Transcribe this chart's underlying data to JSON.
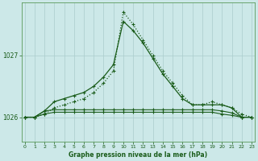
{
  "title": "Graphe pression niveau de la mer (hPa)",
  "background_color": "#cce8e8",
  "grid_color": "#aacccc",
  "line_color": "#1a5c1a",
  "text_color": "#1a5c1a",
  "x_ticks": [
    0,
    1,
    2,
    3,
    4,
    5,
    6,
    7,
    8,
    9,
    10,
    11,
    12,
    13,
    14,
    15,
    16,
    17,
    18,
    19,
    20,
    21,
    22,
    23
  ],
  "y_ticks": [
    1026,
    1027
  ],
  "ylim": [
    1025.6,
    1027.85
  ],
  "xlim": [
    -0.3,
    23.3
  ],
  "series_dotted": {
    "x": [
      0,
      1,
      2,
      3,
      4,
      5,
      6,
      7,
      8,
      9,
      10,
      11,
      12,
      13,
      14,
      15,
      16,
      17,
      18,
      19,
      20,
      21,
      22,
      23
    ],
    "y": [
      1026.0,
      1026.0,
      1026.05,
      1026.15,
      1026.2,
      1026.25,
      1026.3,
      1026.4,
      1026.55,
      1026.75,
      1027.7,
      1027.5,
      1027.25,
      1027.0,
      1026.75,
      1026.55,
      1026.35,
      1026.2,
      1026.2,
      1026.25,
      1026.2,
      1026.15,
      1026.05,
      1026.0
    ]
  },
  "series_solid_main": {
    "x": [
      0,
      1,
      2,
      3,
      4,
      5,
      6,
      7,
      8,
      9,
      10,
      11,
      12,
      13,
      14,
      15,
      16,
      17,
      18,
      19,
      20,
      21,
      22,
      23
    ],
    "y": [
      1026.0,
      1026.0,
      1026.1,
      1026.25,
      1026.3,
      1026.35,
      1026.4,
      1026.5,
      1026.65,
      1026.85,
      1027.55,
      1027.4,
      1027.2,
      1026.95,
      1026.7,
      1026.5,
      1026.3,
      1026.2,
      1026.2,
      1026.2,
      1026.2,
      1026.15,
      1026.0,
      1026.0
    ]
  },
  "series_flat1": {
    "x": [
      0,
      1,
      2,
      3,
      4,
      5,
      6,
      7,
      8,
      9,
      10,
      11,
      12,
      13,
      14,
      15,
      16,
      17,
      18,
      19,
      20,
      21,
      22,
      23
    ],
    "y": [
      1026.0,
      1026.0,
      1026.1,
      1026.12,
      1026.12,
      1026.12,
      1026.12,
      1026.12,
      1026.12,
      1026.12,
      1026.12,
      1026.12,
      1026.12,
      1026.12,
      1026.12,
      1026.12,
      1026.12,
      1026.12,
      1026.12,
      1026.12,
      1026.1,
      1026.07,
      1026.0,
      1026.0
    ]
  },
  "series_flat2": {
    "x": [
      0,
      1,
      2,
      3,
      4,
      5,
      6,
      7,
      8,
      9,
      10,
      11,
      12,
      13,
      14,
      15,
      16,
      17,
      18,
      19,
      20,
      21,
      22,
      23
    ],
    "y": [
      1026.0,
      1026.0,
      1026.05,
      1026.08,
      1026.08,
      1026.08,
      1026.08,
      1026.08,
      1026.08,
      1026.08,
      1026.08,
      1026.08,
      1026.08,
      1026.08,
      1026.08,
      1026.08,
      1026.08,
      1026.08,
      1026.08,
      1026.08,
      1026.05,
      1026.03,
      1026.0,
      1026.0
    ]
  }
}
